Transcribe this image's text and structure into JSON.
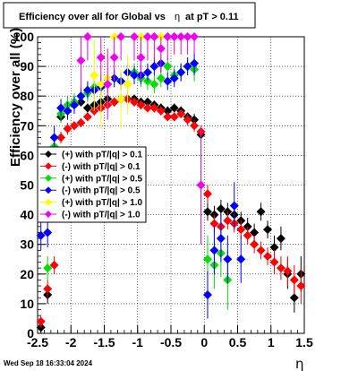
{
  "page": {
    "footer_text": "Wed Sep 18 16:33:04 2024"
  },
  "chart_data": {
    "type": "scatter",
    "title_main": "Efficiency over all for Global vs",
    "title_eta": "η",
    "title_tail": "at pT > 0.11",
    "title": "Efficiency over all for Global vs η at pT > 0.11",
    "xlabel": "η",
    "ylabel": "Efficiency over all (%)",
    "xlim": [
      -2.5,
      1.5
    ],
    "ylim": [
      0,
      100
    ],
    "grid": true,
    "legend_position": "left-middle",
    "x_ticks": [
      -2.5,
      -2,
      -1.5,
      -1,
      -0.5,
      0,
      0.5,
      1,
      1.5
    ],
    "x_tick_labels": [
      "-2.5",
      "-2",
      "-1.5",
      "-1",
      "-0.5",
      "0",
      "0.5",
      "1",
      "1.5"
    ],
    "y_ticks": [
      0,
      10,
      20,
      30,
      40,
      50,
      60,
      70,
      80,
      90,
      100
    ],
    "y_tick_labels": [
      "0",
      "10",
      "20",
      "30",
      "40",
      "50",
      "60",
      "70",
      "80",
      "90",
      "100"
    ],
    "series": [
      {
        "name": "(+) with pT/|q| > 0.1",
        "color": "#000000",
        "marker": "diamond",
        "points": [
          [
            -2.45,
            2,
            2
          ],
          [
            -2.35,
            13,
            3
          ],
          [
            -2.25,
            47,
            3
          ],
          [
            -2.15,
            73,
            2
          ],
          [
            -2.05,
            75,
            2
          ],
          [
            -1.95,
            77,
            1.5
          ],
          [
            -1.85,
            78,
            1.5
          ],
          [
            -1.75,
            76,
            1.5
          ],
          [
            -1.65,
            77,
            1.5
          ],
          [
            -1.55,
            78,
            1.5
          ],
          [
            -1.45,
            79,
            1.5
          ],
          [
            -1.35,
            78,
            1.5
          ],
          [
            -1.25,
            79,
            1.5
          ],
          [
            -1.15,
            79,
            1.5
          ],
          [
            -1.05,
            79,
            1.5
          ],
          [
            -0.95,
            78,
            1.5
          ],
          [
            -0.85,
            78,
            1.5
          ],
          [
            -0.75,
            77,
            1.5
          ],
          [
            -0.65,
            76,
            1.5
          ],
          [
            -0.55,
            75,
            1.5
          ],
          [
            -0.45,
            76,
            1.5
          ],
          [
            -0.35,
            75,
            1.5
          ],
          [
            -0.25,
            73,
            1.5
          ],
          [
            -0.15,
            72,
            2
          ],
          [
            -0.05,
            67,
            2
          ],
          [
            0.05,
            41,
            3
          ],
          [
            0.15,
            40,
            3
          ],
          [
            0.25,
            42,
            3
          ],
          [
            0.35,
            41,
            3
          ],
          [
            0.45,
            40,
            3
          ],
          [
            0.55,
            38,
            3
          ],
          [
            0.65,
            36,
            3
          ],
          [
            0.75,
            34,
            3
          ],
          [
            0.85,
            41,
            3
          ],
          [
            0.95,
            35,
            3
          ],
          [
            1.05,
            29,
            4
          ],
          [
            1.15,
            32,
            4
          ],
          [
            1.25,
            20,
            5
          ],
          [
            1.35,
            12,
            5
          ],
          [
            1.45,
            20,
            6
          ]
        ]
      },
      {
        "name": "(-) with pT/|q| > 0.1",
        "color": "#ff0000",
        "marker": "diamond",
        "points": [
          [
            -2.45,
            4,
            2
          ],
          [
            -2.35,
            15,
            3
          ],
          [
            -2.25,
            23,
            3
          ],
          [
            -2.15,
            66,
            2
          ],
          [
            -2.05,
            69,
            2
          ],
          [
            -1.95,
            70,
            1.5
          ],
          [
            -1.85,
            71,
            1.5
          ],
          [
            -1.75,
            73,
            1.5
          ],
          [
            -1.65,
            75,
            1.5
          ],
          [
            -1.55,
            76,
            1.5
          ],
          [
            -1.45,
            77,
            1.5
          ],
          [
            -1.35,
            78,
            1.5
          ],
          [
            -1.25,
            79,
            1.5
          ],
          [
            -1.15,
            79,
            1.5
          ],
          [
            -1.05,
            78,
            1.5
          ],
          [
            -0.95,
            77,
            1.5
          ],
          [
            -0.85,
            76,
            1.5
          ],
          [
            -0.75,
            76,
            1.5
          ],
          [
            -0.65,
            75,
            1.5
          ],
          [
            -0.55,
            73,
            1.5
          ],
          [
            -0.45,
            73,
            1.5
          ],
          [
            -0.35,
            74,
            1.5
          ],
          [
            -0.25,
            72,
            2
          ],
          [
            -0.15,
            70,
            2
          ],
          [
            -0.05,
            68,
            2
          ],
          [
            0.05,
            47,
            3
          ],
          [
            0.15,
            37,
            3
          ],
          [
            0.25,
            36,
            3
          ],
          [
            0.35,
            38,
            3
          ],
          [
            0.45,
            37,
            3
          ],
          [
            0.55,
            35,
            3
          ],
          [
            0.65,
            33,
            3
          ],
          [
            0.75,
            30,
            3
          ],
          [
            0.85,
            28,
            3
          ],
          [
            0.95,
            26,
            3
          ],
          [
            1.05,
            24,
            4
          ],
          [
            1.15,
            22,
            4
          ],
          [
            1.25,
            21,
            5
          ],
          [
            1.35,
            18,
            5
          ],
          [
            1.45,
            16,
            6
          ]
        ]
      },
      {
        "name": "(+) with pT/|q| > 0.5",
        "color": "#00dd00",
        "marker": "diamond",
        "points": [
          [
            -2.35,
            22,
            4
          ],
          [
            -2.25,
            63,
            4
          ],
          [
            -2.15,
            74,
            3
          ],
          [
            -2.05,
            77,
            3
          ],
          [
            -1.95,
            78,
            3
          ],
          [
            -1.85,
            80,
            3
          ],
          [
            -1.75,
            81,
            3
          ],
          [
            -1.65,
            83,
            3
          ],
          [
            -1.55,
            84,
            3
          ],
          [
            -1.45,
            84,
            3
          ],
          [
            -1.35,
            86,
            3
          ],
          [
            -1.25,
            85,
            3
          ],
          [
            -1.15,
            84,
            3
          ],
          [
            -1.05,
            88,
            3
          ],
          [
            -0.95,
            86,
            3
          ],
          [
            -0.85,
            85,
            3
          ],
          [
            -0.75,
            84,
            3
          ],
          [
            -0.65,
            86,
            3
          ],
          [
            -0.55,
            90,
            3
          ],
          [
            -0.45,
            87,
            3
          ],
          [
            -0.35,
            88,
            3
          ],
          [
            -0.25,
            90,
            3
          ],
          [
            -0.15,
            89,
            4
          ],
          [
            0.05,
            25,
            8
          ],
          [
            0.15,
            23,
            8
          ],
          [
            0.25,
            27,
            8
          ],
          [
            0.35,
            18,
            10
          ]
        ]
      },
      {
        "name": "(-) with pT/|q| > 0.5",
        "color": "#0000ff",
        "marker": "diamond",
        "points": [
          [
            -2.45,
            33,
            5
          ],
          [
            -2.35,
            34,
            5
          ],
          [
            -2.25,
            66,
            4
          ],
          [
            -2.15,
            76,
            3
          ],
          [
            -2.05,
            75,
            3
          ],
          [
            -1.95,
            77,
            3
          ],
          [
            -1.85,
            80,
            3
          ],
          [
            -1.75,
            82,
            3
          ],
          [
            -1.65,
            82,
            3
          ],
          [
            -1.55,
            83,
            3
          ],
          [
            -1.45,
            84,
            3
          ],
          [
            -1.35,
            86,
            3
          ],
          [
            -1.25,
            85,
            3
          ],
          [
            -1.15,
            88,
            3
          ],
          [
            -1.05,
            87,
            3
          ],
          [
            -0.95,
            87,
            3
          ],
          [
            -0.85,
            88,
            3
          ],
          [
            -0.75,
            90,
            3
          ],
          [
            -0.65,
            91,
            3
          ],
          [
            -0.55,
            85,
            3
          ],
          [
            -0.45,
            86,
            3
          ],
          [
            -0.35,
            88,
            3
          ],
          [
            -0.25,
            90,
            3
          ],
          [
            -0.15,
            91,
            4
          ],
          [
            0.05,
            13,
            8
          ],
          [
            0.15,
            28,
            8
          ],
          [
            0.25,
            32,
            8
          ],
          [
            0.35,
            25,
            8
          ],
          [
            0.45,
            43,
            8
          ],
          [
            0.55,
            25,
            8
          ]
        ]
      },
      {
        "name": "(+) with pT/|q| > 1.0",
        "color": "#ffff00",
        "marker": "diamond",
        "points": [
          [
            -1.75,
            100,
            8
          ],
          [
            -1.65,
            87,
            12
          ],
          [
            -1.55,
            84,
            15
          ],
          [
            -1.45,
            86,
            10
          ],
          [
            -1.35,
            100,
            8
          ],
          [
            -1.25,
            79,
            10
          ],
          [
            -1.15,
            84,
            10
          ],
          [
            -1.05,
            100,
            8
          ],
          [
            -0.95,
            100,
            8
          ],
          [
            -0.85,
            100,
            8
          ],
          [
            -0.75,
            100,
            8
          ],
          [
            -0.65,
            100,
            8
          ],
          [
            -0.45,
            100,
            6
          ]
        ]
      },
      {
        "name": "(-) with pT/|q| > 1.0",
        "color": "#ee00ee",
        "marker": "diamond",
        "points": [
          [
            -1.85,
            92,
            10
          ],
          [
            -1.75,
            100,
            8
          ],
          [
            -1.55,
            93,
            8
          ],
          [
            -1.45,
            84,
            12
          ],
          [
            -1.35,
            93,
            8
          ],
          [
            -1.25,
            100,
            8
          ],
          [
            -1.05,
            100,
            8
          ],
          [
            -0.95,
            93,
            8
          ],
          [
            -0.85,
            100,
            8
          ],
          [
            -0.75,
            100,
            8
          ],
          [
            -0.65,
            96,
            8
          ],
          [
            -0.55,
            100,
            8
          ],
          [
            -0.45,
            100,
            6
          ],
          [
            -0.35,
            100,
            6
          ],
          [
            -0.25,
            100,
            6
          ],
          [
            -0.15,
            100,
            6
          ],
          [
            -0.05,
            50,
            20
          ]
        ]
      }
    ]
  }
}
